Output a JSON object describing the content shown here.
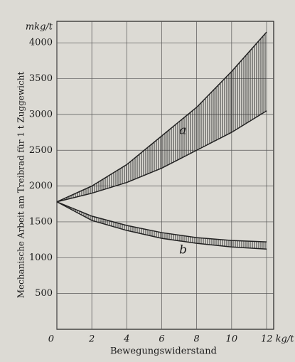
{
  "chart_data": {
    "type": "band",
    "y_label": "Mechanische Arbeit am Treibrad für 1 t Zuggewicht",
    "x_label": "Bewegungswiderstand",
    "y_unit": "mkg/t",
    "x": [
      0,
      2,
      4,
      6,
      8,
      10,
      12
    ],
    "series": [
      {
        "name": "a",
        "color": "#222222",
        "upper": [
          1780,
          2000,
          2300,
          2700,
          3100,
          3600,
          4150
        ],
        "lower": [
          1780,
          1900,
          2050,
          2250,
          2500,
          2750,
          3050
        ]
      },
      {
        "name": "b",
        "color": "#222222",
        "upper": [
          1780,
          1580,
          1450,
          1350,
          1280,
          1240,
          1220
        ],
        "lower": [
          1780,
          1520,
          1380,
          1270,
          1200,
          1150,
          1120
        ]
      }
    ],
    "xlim": [
      0,
      12
    ],
    "ylim": [
      0,
      4300
    ],
    "xticks": [
      0,
      2,
      4,
      6,
      8,
      10,
      {
        "value": 12,
        "label": "12 kg/t"
      }
    ],
    "yticks": [
      500,
      1000,
      1500,
      2000,
      2500,
      3000,
      3500,
      4000
    ],
    "grid": true
  }
}
